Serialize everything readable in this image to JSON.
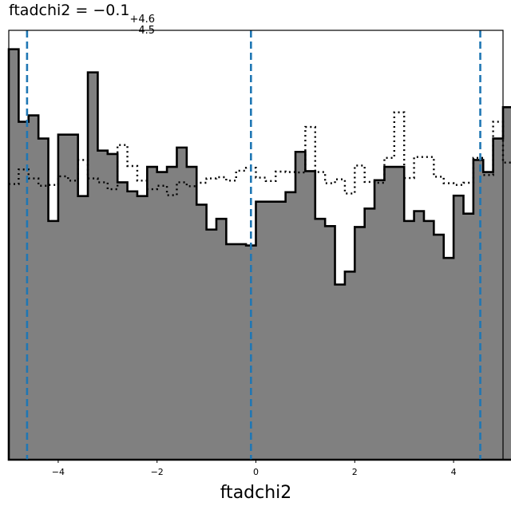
{
  "title": {
    "main": "ftadchi2 = −0.1",
    "sup": "+4.6",
    "sub": "−4.5"
  },
  "chart_data": {
    "type": "histogram",
    "xlabel": "ftadchi2",
    "ylabel": "",
    "xlim": [
      -5.0,
      5.0
    ],
    "ylim": [
      0,
      1.0
    ],
    "xticks": [
      -4,
      -2,
      0,
      2,
      4
    ],
    "xtick_labels": [
      "−4",
      "−2",
      "0",
      "2",
      "4"
    ],
    "bin_edges_start": -5.0,
    "bin_width": 0.2,
    "series": [
      {
        "style": "filled",
        "fill": "#808080",
        "edge": "#000000",
        "values": [
          0.956,
          0.787,
          0.802,
          0.748,
          0.556,
          0.757,
          0.757,
          0.614,
          0.902,
          0.72,
          0.712,
          0.646,
          0.625,
          0.614,
          0.682,
          0.67,
          0.682,
          0.727,
          0.682,
          0.594,
          0.536,
          0.561,
          0.502,
          0.502,
          0.499,
          0.601,
          0.601,
          0.601,
          0.623,
          0.717,
          0.672,
          0.561,
          0.544,
          0.408,
          0.438,
          0.542,
          0.585,
          0.651,
          0.682,
          0.682,
          0.556,
          0.579,
          0.556,
          0.524,
          0.47,
          0.615,
          0.573,
          0.698,
          0.67,
          0.748,
          0.821,
          0.846,
          0.666,
          0.852,
          0.713,
          0.666,
          0.789,
          0.71,
          0.722,
          0.724
        ]
      },
      {
        "style": "dotted-step",
        "edge": "#000000",
        "values": [
          0.642,
          0.676,
          0.655,
          0.638,
          0.64,
          0.66,
          0.65,
          0.698,
          0.655,
          0.646,
          0.63,
          0.733,
          0.684,
          0.65,
          0.63,
          0.638,
          0.616,
          0.646,
          0.637,
          0.645,
          0.655,
          0.658,
          0.65,
          0.673,
          0.68,
          0.657,
          0.649,
          0.671,
          0.67,
          0.669,
          0.775,
          0.67,
          0.644,
          0.653,
          0.62,
          0.685,
          0.647,
          0.645,
          0.703,
          0.809,
          0.656,
          0.705,
          0.705,
          0.659,
          0.644,
          0.64,
          0.645,
          0.703,
          0.663,
          0.787,
          0.692,
          0.683,
          0.644,
          0.616,
          0.619,
          0.643,
          0.64,
          0.645,
          0.629,
          0.682
        ]
      }
    ],
    "vlines": [
      {
        "x": -4.63,
        "color": "#1f77b4",
        "style": "dashed"
      },
      {
        "x": -0.1,
        "color": "#1f77b4",
        "style": "dashed"
      },
      {
        "x": 4.54,
        "color": "#1f77b4",
        "style": "dashed"
      }
    ]
  }
}
